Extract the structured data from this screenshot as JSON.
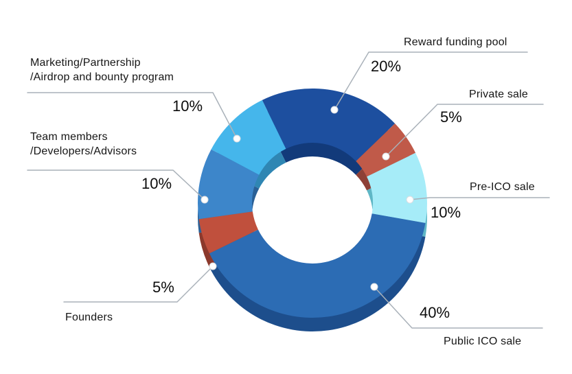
{
  "chart_data": {
    "type": "pie",
    "variant": "3d-donut",
    "title": "",
    "total": 100,
    "start_angle_deg": -26,
    "direction": "clockwise",
    "legend": "none (callout labels with leader lines)",
    "style": {
      "background": "#ffffff",
      "leader_line_color": "#a9b1b9",
      "dot_color": "#ffffff",
      "dot_edge_color": "#d9dde1",
      "label_text_color": "#151515",
      "percent_text_color": "#0c0c0c"
    },
    "slices": [
      {
        "label": "Reward funding pool",
        "label_lines": [
          "Reward funding pool"
        ],
        "value": 20,
        "display_pct": "20%",
        "color": "#1d4f9f",
        "side_color": "#123a7a"
      },
      {
        "label": "Private sale",
        "label_lines": [
          "Private sale"
        ],
        "value": 5,
        "display_pct": "5%",
        "color": "#c05a49",
        "side_color": "#8e4036"
      },
      {
        "label": "Pre-ICO sale",
        "label_lines": [
          "Pre-ICO sale"
        ],
        "value": 10,
        "display_pct": "10%",
        "color": "#a6ecf8",
        "side_color": "#5fb7c6"
      },
      {
        "label": "Public ICO sale",
        "label_lines": [
          "Public ICO sale"
        ],
        "value": 40,
        "display_pct": "40%",
        "color": "#2c6cb4",
        "side_color": "#1d4e8c"
      },
      {
        "label": "Founders",
        "label_lines": [
          "Founders"
        ],
        "value": 5,
        "display_pct": "5%",
        "color": "#c0503d",
        "side_color": "#8c392c"
      },
      {
        "label": "Team members /Developers/Advisors",
        "label_lines": [
          "Team members",
          "/Developers/Advisors"
        ],
        "value": 10,
        "display_pct": "10%",
        "color": "#3d86ca",
        "side_color": "#2a6096"
      },
      {
        "label": "Marketing/Partnership /Airdrop and bounty program",
        "label_lines": [
          "Marketing/Partnership",
          "/Airdrop and bounty program"
        ],
        "value": 10,
        "display_pct": "10%",
        "color": "#45b6eb",
        "side_color": "#2f86b3"
      }
    ]
  }
}
